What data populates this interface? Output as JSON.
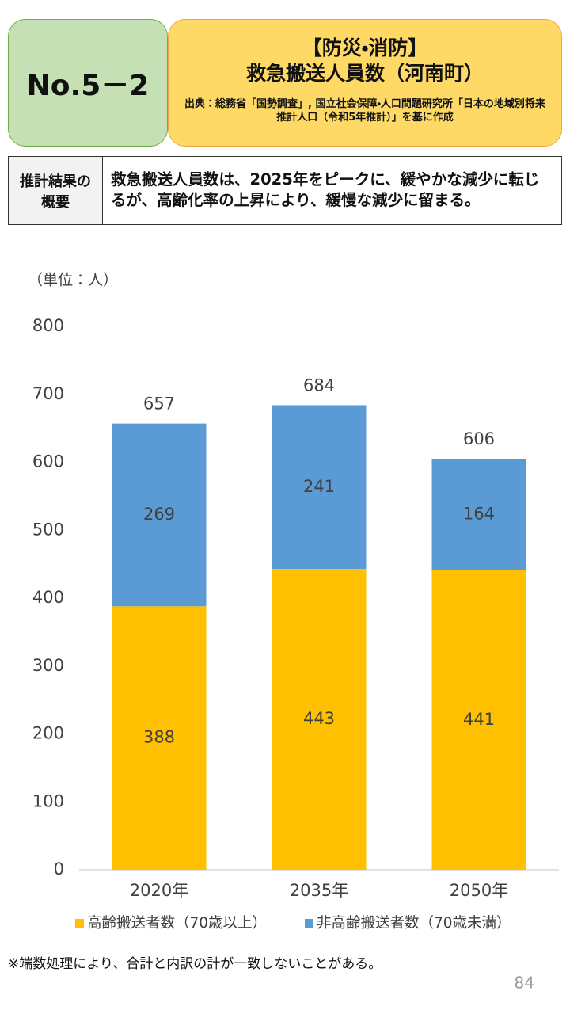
{
  "header": {
    "badge": "No.5－2",
    "title_line1": "【防災・消防】",
    "title_line2": "救急搬送人員数（河南町）",
    "source": "出典：総務省「国勢調査」, 国立社会保障・人口問題研究所「日本の地域別将来推計人口（令和5年推計）」を基に作成"
  },
  "summary": {
    "label": "推計結果の概要",
    "text": "救急搬送人員数は、2025年をピークに、緩やかな減少に転じるが、高齢化率の上昇により、緩慢な減少に留まる。"
  },
  "chart_data": {
    "type": "stacked-bar",
    "unit": "（単位：人）",
    "categories": [
      "2020年",
      "2035年",
      "2050年"
    ],
    "series": [
      {
        "name": "高齢搬送者数（70歳以上）",
        "color": "#ffc000",
        "values": [
          388,
          443,
          441
        ]
      },
      {
        "name": "非高齢搬送者数（70歳未満）",
        "color": "#5b9bd5",
        "values": [
          269,
          241,
          164
        ]
      }
    ],
    "totals": [
      657,
      684,
      606
    ],
    "ylim": [
      0,
      800
    ],
    "yticks": [
      0,
      100,
      200,
      300,
      400,
      500,
      600,
      700,
      800
    ],
    "grid": false
  },
  "note": "※端数処理により、合計と内訳の計が一致しないことがある。",
  "page_number": "84"
}
